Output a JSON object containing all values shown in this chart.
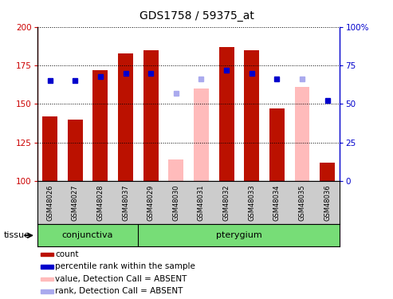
{
  "title": "GDS1758 / 59375_at",
  "samples": [
    "GSM48026",
    "GSM48027",
    "GSM48028",
    "GSM48037",
    "GSM48029",
    "GSM48030",
    "GSM48031",
    "GSM48032",
    "GSM48033",
    "GSM48034",
    "GSM48035",
    "GSM48036"
  ],
  "absent": [
    false,
    false,
    false,
    false,
    false,
    true,
    true,
    false,
    false,
    false,
    true,
    false
  ],
  "bar_values": [
    142,
    140,
    172,
    183,
    185,
    114,
    160,
    187,
    185,
    147,
    161,
    112
  ],
  "rank_values": [
    65,
    65,
    68,
    70,
    70,
    57,
    66,
    72,
    70,
    66,
    66,
    52
  ],
  "ylim_left": [
    100,
    200
  ],
  "ylim_right": [
    0,
    100
  ],
  "yticks_left": [
    100,
    125,
    150,
    175,
    200
  ],
  "yticks_right": [
    0,
    25,
    50,
    75,
    100
  ],
  "ytick_right_labels": [
    "0",
    "25",
    "50",
    "75",
    "100%"
  ],
  "bar_color_present": "#bb1100",
  "bar_color_absent": "#ffbbbb",
  "rank_color_present": "#0000cc",
  "rank_color_absent": "#aaaaee",
  "tissue_bg_color": "#77dd77",
  "xtick_bg_color": "#cccccc",
  "conj_count": 4,
  "total_count": 12,
  "legend_items": [
    {
      "label": "count",
      "color": "#bb1100"
    },
    {
      "label": "percentile rank within the sample",
      "color": "#0000cc"
    },
    {
      "label": "value, Detection Call = ABSENT",
      "color": "#ffbbbb"
    },
    {
      "label": "rank, Detection Call = ABSENT",
      "color": "#aaaaee"
    }
  ]
}
